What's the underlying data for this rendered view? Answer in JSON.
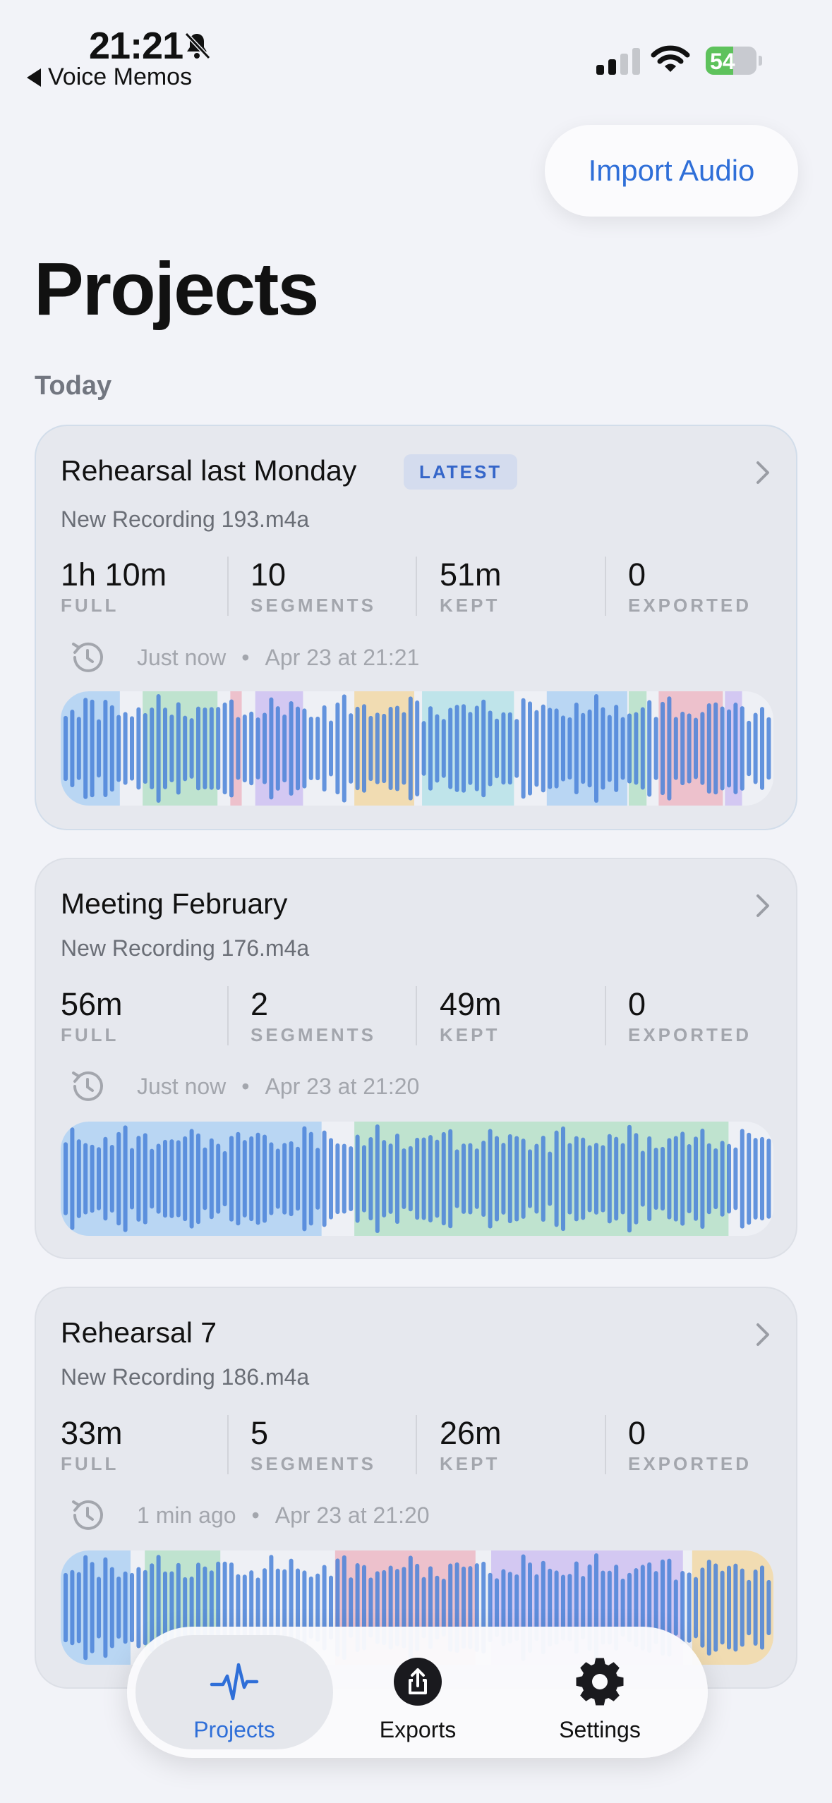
{
  "status_bar": {
    "time": "21:21",
    "back_app": "Voice Memos",
    "battery": "54",
    "battery_level": 0.54
  },
  "header": {
    "import_label": "Import Audio",
    "title": "Projects",
    "section": "Today"
  },
  "projects": [
    {
      "title": "Rehearsal last Monday",
      "badge": "LATEST",
      "file": "New Recording 193.m4a",
      "stats": [
        {
          "value": "1h 10m",
          "label": "FULL"
        },
        {
          "value": "10",
          "label": "SEGMENTS"
        },
        {
          "value": "51m",
          "label": "KEPT"
        },
        {
          "value": "0",
          "label": "EXPORTED"
        }
      ],
      "updated": "Just now",
      "date": "Apr 23 at 21:21",
      "segments": [
        {
          "start": 0.0,
          "end": 0.083,
          "color": "#b9d6f3"
        },
        {
          "start": 0.115,
          "end": 0.22,
          "color": "#bfe3cf"
        },
        {
          "start": 0.238,
          "end": 0.254,
          "color": "#edc1cc"
        },
        {
          "start": 0.273,
          "end": 0.34,
          "color": "#d3c8f2"
        },
        {
          "start": 0.412,
          "end": 0.496,
          "color": "#f1dcb2"
        },
        {
          "start": 0.507,
          "end": 0.636,
          "color": "#bfe4ea"
        },
        {
          "start": 0.682,
          "end": 0.795,
          "color": "#b9d6f3"
        },
        {
          "start": 0.797,
          "end": 0.822,
          "color": "#bfe3cf"
        },
        {
          "start": 0.839,
          "end": 0.929,
          "color": "#edc1cc"
        },
        {
          "start": 0.932,
          "end": 0.956,
          "color": "#d3c8f2"
        }
      ]
    },
    {
      "title": "Meeting February",
      "file": "New Recording 176.m4a",
      "stats": [
        {
          "value": "56m",
          "label": "FULL"
        },
        {
          "value": "2",
          "label": "SEGMENTS"
        },
        {
          "value": "49m",
          "label": "KEPT"
        },
        {
          "value": "0",
          "label": "EXPORTED"
        }
      ],
      "updated": "Just now",
      "date": "Apr 23 at 21:20",
      "segments": [
        {
          "start": 0.0,
          "end": 0.366,
          "color": "#b9d6f3"
        },
        {
          "start": 0.412,
          "end": 0.937,
          "color": "#bfe3cf"
        }
      ]
    },
    {
      "title": "Rehearsal 7",
      "file": "New Recording 186.m4a",
      "stats": [
        {
          "value": "33m",
          "label": "FULL"
        },
        {
          "value": "5",
          "label": "SEGMENTS"
        },
        {
          "value": "26m",
          "label": "KEPT"
        },
        {
          "value": "0",
          "label": "EXPORTED"
        }
      ],
      "updated": "1 min ago",
      "date": "Apr 23 at 21:20",
      "segments": [
        {
          "start": 0.0,
          "end": 0.098,
          "color": "#b9d6f3"
        },
        {
          "start": 0.118,
          "end": 0.224,
          "color": "#bfe3cf"
        },
        {
          "start": 0.385,
          "end": 0.582,
          "color": "#edc1cc"
        },
        {
          "start": 0.604,
          "end": 0.873,
          "color": "#d3c8f2"
        },
        {
          "start": 0.886,
          "end": 1.0,
          "color": "#f1dcb2"
        }
      ]
    }
  ],
  "tabs": [
    {
      "label": "Projects",
      "icon": "waveform-icon",
      "active": true
    },
    {
      "label": "Exports",
      "icon": "share-icon",
      "active": false
    },
    {
      "label": "Settings",
      "icon": "gear-icon",
      "active": false
    }
  ],
  "colors": {
    "accent": "#2f6fd8",
    "waveform": "#4a82d8"
  }
}
